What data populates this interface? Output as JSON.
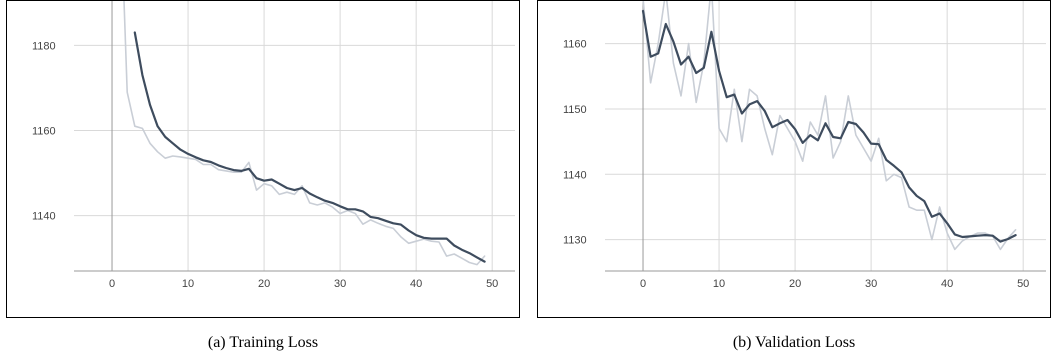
{
  "captions": [
    "(a) Training Loss",
    "(b) Validation Loss"
  ],
  "colors": {
    "smoothed": "#3e4c5e",
    "raw": "#c9ced6",
    "grid": "#d9d9d9",
    "zero_line": "#999999"
  },
  "chart_data": [
    {
      "type": "line",
      "title": "",
      "xlabel": "",
      "ylabel": "",
      "xlim": [
        -5,
        53
      ],
      "ylim": [
        1127,
        1189
      ],
      "xticks": [
        0,
        10,
        20,
        30,
        40,
        50
      ],
      "yticks": [
        1140,
        1160,
        1180
      ],
      "grid": true,
      "series": [
        {
          "role": "raw",
          "x": [
            1,
            2,
            3,
            4,
            5,
            6,
            7,
            8,
            9,
            10,
            11,
            12,
            13,
            14,
            15,
            16,
            17,
            18,
            19,
            20,
            21,
            22,
            23,
            24,
            25,
            26,
            27,
            28,
            29,
            30,
            31,
            32,
            33,
            34,
            35,
            36,
            37,
            38,
            39,
            40,
            41,
            42,
            43,
            44,
            45,
            46,
            47,
            48,
            49
          ],
          "values": [
            1220,
            1169,
            1161,
            1160.5,
            1157,
            1155,
            1153.5,
            1154,
            1153.8,
            1153.5,
            1153.2,
            1152,
            1152,
            1150.8,
            1150.5,
            1150.2,
            1150.2,
            1152.5,
            1146,
            1147.5,
            1147,
            1145,
            1145.5,
            1145,
            1147,
            1143,
            1142.5,
            1143,
            1142,
            1140.5,
            1141.2,
            1140.5,
            1138,
            1139,
            1138.2,
            1137.5,
            1137,
            1135,
            1133.5,
            1134,
            1134.5,
            1134,
            1133.8,
            1130.5,
            1131,
            1130,
            1129,
            1128.5,
            1130.5
          ]
        },
        {
          "role": "smoothed",
          "x": [
            3,
            4,
            5,
            6,
            7,
            8,
            9,
            10,
            11,
            12,
            13,
            14,
            15,
            16,
            17,
            18,
            19,
            20,
            21,
            22,
            23,
            24,
            25,
            26,
            27,
            28,
            29,
            30,
            31,
            32,
            33,
            34,
            35,
            36,
            37,
            38,
            39,
            40,
            41,
            42,
            43,
            44,
            45,
            46,
            47,
            48,
            49
          ],
          "values": [
            1183,
            1173,
            1166,
            1161,
            1158.5,
            1157,
            1155.5,
            1154.5,
            1153.7,
            1153,
            1152.6,
            1151.8,
            1151.2,
            1150.7,
            1150.5,
            1151,
            1148.8,
            1148.2,
            1148.5,
            1147.5,
            1146.5,
            1146,
            1146.5,
            1145.2,
            1144.3,
            1143.5,
            1143,
            1142.2,
            1141.5,
            1141.5,
            1141,
            1139.7,
            1139.4,
            1138.8,
            1138.2,
            1137.9,
            1136.5,
            1135.4,
            1134.8,
            1134.6,
            1134.6,
            1134.6,
            1133,
            1132,
            1131.2,
            1130.2,
            1129.2
          ]
        }
      ]
    },
    {
      "type": "line",
      "title": "",
      "xlabel": "",
      "ylabel": "",
      "xlim": [
        -5,
        53
      ],
      "ylim": [
        1125.2,
        1165.6
      ],
      "xticks": [
        0,
        10,
        20,
        30,
        40,
        50
      ],
      "yticks": [
        1130,
        1140,
        1150,
        1160
      ],
      "grid": true,
      "series": [
        {
          "role": "raw",
          "x": [
            0,
            1,
            2,
            3,
            4,
            5,
            6,
            7,
            8,
            9,
            10,
            11,
            12,
            13,
            14,
            15,
            16,
            17,
            18,
            19,
            20,
            21,
            22,
            23,
            24,
            25,
            26,
            27,
            28,
            29,
            30,
            31,
            32,
            33,
            34,
            35,
            36,
            37,
            38,
            39,
            40,
            41,
            42,
            43,
            44,
            45,
            46,
            47,
            48,
            49
          ],
          "values": [
            1167,
            1154,
            1160,
            1168,
            1157,
            1152,
            1160,
            1151,
            1157,
            1169,
            1147,
            1145,
            1153,
            1145,
            1153,
            1152,
            1147,
            1143,
            1149,
            1147,
            1145,
            1142,
            1148,
            1146,
            1152,
            1142.5,
            1145,
            1152,
            1146,
            1144,
            1142,
            1145.5,
            1139,
            1140,
            1139.5,
            1135,
            1134.5,
            1134.5,
            1130,
            1135,
            1131,
            1128.5,
            1129.8,
            1130.5,
            1131,
            1131,
            1130.5,
            1128.5,
            1130.2,
            1131.5
          ]
        },
        {
          "role": "smoothed",
          "x": [
            0,
            1,
            2,
            3,
            4,
            5,
            6,
            7,
            8,
            9,
            10,
            11,
            12,
            13,
            14,
            15,
            16,
            17,
            18,
            19,
            20,
            21,
            22,
            23,
            24,
            25,
            26,
            27,
            28,
            29,
            30,
            31,
            32,
            33,
            34,
            35,
            36,
            37,
            38,
            39,
            40,
            41,
            42,
            43,
            44,
            45,
            46,
            47,
            48,
            49
          ],
          "values": [
            1165,
            1158,
            1158.5,
            1163,
            1160.3,
            1156.8,
            1158,
            1155.5,
            1156.3,
            1161.8,
            1155.8,
            1151.8,
            1152.2,
            1149.3,
            1150.7,
            1151.2,
            1149.7,
            1147.2,
            1147.8,
            1148.3,
            1146.9,
            1144.8,
            1146,
            1145.2,
            1147.8,
            1145.7,
            1145.5,
            1148,
            1147.7,
            1146.4,
            1144.7,
            1144.6,
            1142.2,
            1141.3,
            1140.3,
            1138,
            1136.7,
            1135.9,
            1133.5,
            1134,
            1132.5,
            1130.8,
            1130.4,
            1130.5,
            1130.6,
            1130.7,
            1130.6,
            1129.7,
            1130.1,
            1130.7
          ]
        }
      ]
    }
  ]
}
